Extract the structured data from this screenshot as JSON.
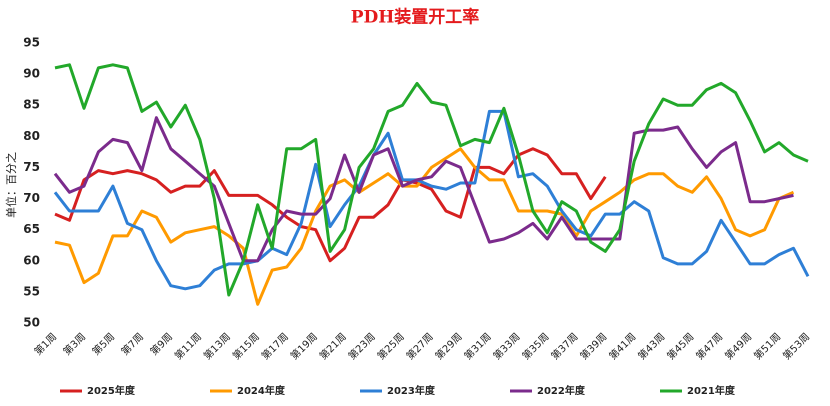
{
  "chart_data": {
    "type": "line",
    "title": "PDH装置开工率",
    "y_label": "单位：百分之",
    "categories": [
      "第1周",
      null,
      "第3周",
      null,
      "第5周",
      null,
      "第7周",
      null,
      "第9周",
      null,
      "第11周",
      null,
      "第13周",
      null,
      "第15周",
      null,
      "第17周",
      null,
      "第19周",
      null,
      "第21周",
      null,
      "第23周",
      null,
      "第25周",
      null,
      "第27周",
      null,
      "第29周",
      null,
      "第31周",
      null,
      "第33周",
      null,
      "第35周",
      null,
      "第37周",
      null,
      "第39周",
      null,
      "第41周",
      null,
      "第43周",
      null,
      "第45周",
      null,
      "第47周",
      null,
      "第49周",
      null,
      "第51周",
      null,
      "第53周"
    ],
    "ylim": [
      50,
      95
    ],
    "yticks": [
      50,
      55,
      60,
      65,
      70,
      75,
      80,
      85,
      90,
      95
    ],
    "grid": false,
    "legend": "bottom",
    "series": [
      {
        "name": "2025年度",
        "color": "#d62020",
        "values": [
          67.5,
          66.5,
          73,
          74.5,
          74,
          74.5,
          74,
          73,
          71,
          72,
          72,
          74.5,
          70.5,
          70.5,
          70.5,
          69,
          67,
          65.5,
          65,
          60,
          62,
          67,
          67,
          69,
          73,
          72.5,
          71.5,
          68,
          67,
          75,
          75,
          74,
          77,
          78,
          77,
          74,
          74,
          70,
          73.5,
          null,
          null,
          null,
          null,
          null,
          null,
          null,
          null,
          null,
          null,
          null,
          null,
          null,
          null
        ]
      },
      {
        "name": "2024年度",
        "color": "#ff9a00",
        "values": [
          63,
          62.5,
          56.5,
          58,
          64,
          64,
          68,
          67,
          63,
          64.5,
          65,
          65.5,
          64,
          62,
          53,
          58.5,
          59,
          62,
          68,
          72,
          73,
          71,
          72.5,
          74,
          72,
          72,
          75,
          76.5,
          78,
          75,
          73,
          73,
          68,
          68,
          68,
          67.5,
          64,
          68,
          69.5,
          71,
          73,
          74,
          74,
          72,
          71,
          73.5,
          70,
          65,
          64,
          65,
          70,
          71,
          null
        ]
      },
      {
        "name": "2023年度",
        "color": "#2e7fd6",
        "values": [
          71,
          68,
          68,
          68,
          72,
          66,
          65,
          60,
          56,
          55.5,
          56,
          58.5,
          59.5,
          59.5,
          60,
          62,
          61,
          66,
          75.5,
          65.5,
          69,
          72,
          77,
          80.5,
          73,
          73,
          72,
          71.5,
          72.5,
          72.5,
          84,
          84,
          73.5,
          74,
          72,
          68,
          65,
          64,
          67.5,
          67.5,
          69.5,
          68,
          60.5,
          59.5,
          59.5,
          61.5,
          66.5,
          63,
          59.5,
          59.5,
          61,
          62,
          57.5
        ]
      },
      {
        "name": "2022年度",
        "color": "#7b2b8c",
        "values": [
          74,
          71,
          72,
          77.5,
          79.5,
          79,
          74.5,
          83,
          78,
          76,
          74,
          72,
          66,
          60,
          60,
          65,
          68,
          67.5,
          67.5,
          70,
          77,
          71,
          77,
          78,
          72,
          73,
          73.5,
          76,
          75,
          69,
          63,
          63.5,
          64.5,
          66,
          63.5,
          67,
          63.5,
          63.5,
          63.5,
          63.5,
          80.5,
          81,
          81,
          81.5,
          78,
          75,
          77.5,
          79,
          69.5,
          69.5,
          70,
          70.5,
          null
        ]
      },
      {
        "name": "2021年度",
        "color": "#22a82a",
        "values": [
          91,
          91.5,
          84.5,
          91,
          91.5,
          91,
          84,
          85.5,
          81.5,
          85,
          79.5,
          70,
          54.5,
          60,
          69,
          62,
          78,
          78,
          79.5,
          61.5,
          65,
          75,
          78,
          84,
          85,
          88.5,
          85.5,
          85,
          78.5,
          79.5,
          79,
          84.5,
          77,
          68,
          64.5,
          69.5,
          68,
          63,
          61.5,
          65,
          76,
          82,
          86,
          85,
          85,
          87.5,
          88.5,
          87,
          82.5,
          77.5,
          79,
          77,
          76
        ]
      }
    ]
  }
}
